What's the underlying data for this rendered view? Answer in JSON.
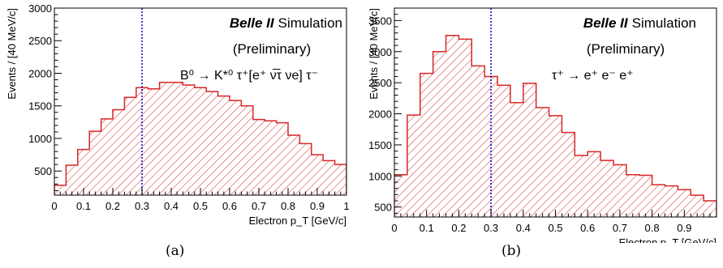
{
  "chart_data": [
    {
      "type": "bar",
      "id": "a",
      "panel_label": "(a)",
      "experiment": "Belle II",
      "label_suffix": "Simulation",
      "status": "(Preliminary)",
      "process": "B⁰ → K*⁰ τ⁺[e⁺ ν̅τ νe] τ⁻",
      "xlabel": "Electron p_T [GeV/c]",
      "ylabel": "Events / [40 MeV/c]",
      "xlim": [
        0,
        1
      ],
      "ylim": [
        130,
        3000
      ],
      "x_ticks": [
        0,
        0.1,
        0.2,
        0.3,
        0.4,
        0.5,
        0.6,
        0.7,
        0.8,
        0.9,
        1
      ],
      "x_tick_labels": [
        "0",
        "0.1",
        "0.2",
        "0.3",
        "0.4",
        "0.5",
        "0.6",
        "0.7",
        "0.8",
        "0.9",
        "1"
      ],
      "y_ticks": [
        500,
        1000,
        1500,
        2000,
        2500,
        3000
      ],
      "y_tick_labels": [
        "500",
        "1000",
        "1500",
        "2000",
        "2500",
        "3000"
      ],
      "bin_width": 0.04,
      "bin_low_edges": [
        0,
        0.04,
        0.08,
        0.12,
        0.16,
        0.2,
        0.24,
        0.28,
        0.32,
        0.36,
        0.4,
        0.44,
        0.48,
        0.52,
        0.56,
        0.6,
        0.64,
        0.68,
        0.72,
        0.76,
        0.8,
        0.84,
        0.88,
        0.92,
        0.96
      ],
      "values": [
        280,
        590,
        830,
        1110,
        1300,
        1440,
        1630,
        1780,
        1760,
        1860,
        1860,
        1820,
        1780,
        1720,
        1650,
        1580,
        1500,
        1290,
        1270,
        1240,
        1050,
        920,
        750,
        660,
        600
      ],
      "cut_line_x": 0.3,
      "fill_color": "#d62728",
      "cut_line_color": "#0000cc",
      "grid": false,
      "legend": "none"
    },
    {
      "type": "bar",
      "id": "b",
      "panel_label": "(b)",
      "experiment": "Belle II",
      "label_suffix": "Simulation",
      "status": "(Preliminary)",
      "process": "τ⁺ → e⁺ e⁻ e⁺",
      "xlabel": "Electron p_T [GeV/c]",
      "ylabel": "Events / [40 MeV/c]",
      "xlim": [
        0,
        1
      ],
      "ylim": [
        340,
        3700
      ],
      "x_ticks": [
        0,
        0.1,
        0.2,
        0.3,
        0.4,
        0.5,
        0.6,
        0.7,
        0.8,
        0.9
      ],
      "x_tick_labels": [
        "0",
        "0.1",
        "0.2",
        "0.3",
        "0.4",
        "0.5",
        "0.6",
        "0.7",
        "0.8",
        "0.9"
      ],
      "y_ticks": [
        500,
        1000,
        1500,
        2000,
        2500,
        3000,
        3500
      ],
      "y_tick_labels": [
        "500",
        "1000",
        "1500",
        "2000",
        "2500",
        "3000",
        "3500"
      ],
      "bin_width": 0.04,
      "bin_low_edges": [
        0,
        0.04,
        0.08,
        0.12,
        0.16,
        0.2,
        0.24,
        0.28,
        0.32,
        0.36,
        0.4,
        0.44,
        0.48,
        0.52,
        0.56,
        0.6,
        0.64,
        0.68,
        0.72,
        0.76,
        0.8,
        0.84,
        0.88,
        0.92,
        0.96
      ],
      "values": [
        1020,
        1980,
        2650,
        3000,
        3260,
        3200,
        2770,
        2600,
        2460,
        2180,
        2490,
        2100,
        1970,
        1700,
        1330,
        1390,
        1250,
        1180,
        1020,
        1010,
        860,
        840,
        780,
        690,
        600
      ],
      "cut_line_x": 0.3,
      "fill_color": "#d62728",
      "cut_line_color": "#0000cc",
      "grid": false,
      "legend": "none"
    }
  ]
}
